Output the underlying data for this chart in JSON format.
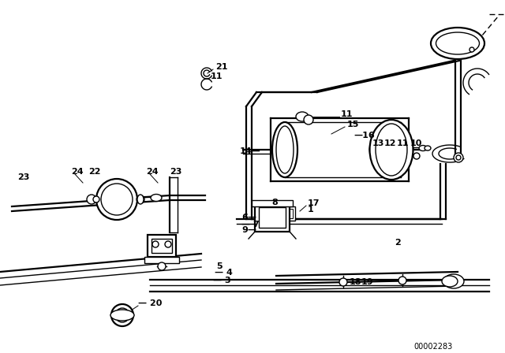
{
  "bg_color": "#ffffff",
  "line_color": "#000000",
  "diagram_id": "00002283",
  "lw": 1.0,
  "lw2": 1.6,
  "fs": 8.0
}
